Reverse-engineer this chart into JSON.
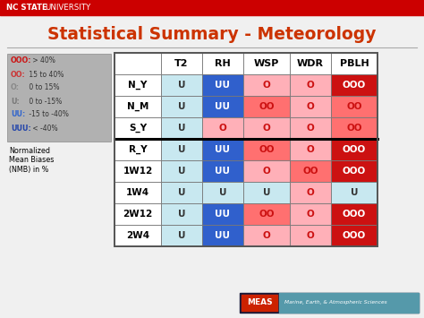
{
  "title": "Statistical Summary - Meteorology",
  "title_color": "#CC3300",
  "bg_color": "#F0F0F0",
  "top_bar_color": "#CC0000",
  "col_headers": [
    "",
    "T2",
    "RH",
    "WSP",
    "WDR",
    "PBLH"
  ],
  "row_labels": [
    "N_Y",
    "N_M",
    "S_Y",
    "R_Y",
    "1W12",
    "1W4",
    "2W12",
    "2W4"
  ],
  "cells": [
    [
      "U",
      "UU",
      "O",
      "O",
      "OOO"
    ],
    [
      "U",
      "UU",
      "OO",
      "O",
      "OO"
    ],
    [
      "U",
      "O",
      "O",
      "O",
      "OO"
    ],
    [
      "U",
      "UU",
      "OO",
      "O",
      "OOO"
    ],
    [
      "U",
      "UU",
      "O",
      "OO",
      "OOO"
    ],
    [
      "U",
      "U",
      "U",
      "O",
      "U"
    ],
    [
      "U",
      "UU",
      "OO",
      "O",
      "OOO"
    ],
    [
      "U",
      "UU",
      "O",
      "O",
      "OOO"
    ]
  ],
  "cell_colors": [
    [
      "#C8E8F0",
      "#3060CC",
      "#FFB0B8",
      "#FFB0B8",
      "#CC1111"
    ],
    [
      "#C8E8F0",
      "#3060CC",
      "#FF7070",
      "#FFB0B8",
      "#FF7070"
    ],
    [
      "#C8E8F0",
      "#FFB0B8",
      "#FFB0B8",
      "#FFB0B8",
      "#FF7070"
    ],
    [
      "#C8E8F0",
      "#3060CC",
      "#FF7070",
      "#FFB0B8",
      "#CC1111"
    ],
    [
      "#C8E8F0",
      "#3060CC",
      "#FFB0B8",
      "#FF7070",
      "#CC1111"
    ],
    [
      "#C8E8F0",
      "#C8E8F0",
      "#C8E8F0",
      "#FFB0B8",
      "#C8E8F0"
    ],
    [
      "#C8E8F0",
      "#3060CC",
      "#FF7070",
      "#FFB0B8",
      "#CC1111"
    ],
    [
      "#C8E8F0",
      "#3060CC",
      "#FFB0B8",
      "#FFB0B8",
      "#CC1111"
    ]
  ],
  "cell_text_colors": [
    [
      "#333333",
      "#FFFFFF",
      "#CC1111",
      "#CC1111",
      "#FFFFFF"
    ],
    [
      "#333333",
      "#FFFFFF",
      "#CC1111",
      "#CC1111",
      "#CC1111"
    ],
    [
      "#333333",
      "#CC1111",
      "#CC1111",
      "#CC1111",
      "#CC1111"
    ],
    [
      "#333333",
      "#FFFFFF",
      "#CC1111",
      "#CC1111",
      "#FFFFFF"
    ],
    [
      "#333333",
      "#FFFFFF",
      "#CC1111",
      "#CC1111",
      "#FFFFFF"
    ],
    [
      "#333333",
      "#333333",
      "#333333",
      "#CC1111",
      "#333333"
    ],
    [
      "#333333",
      "#FFFFFF",
      "#CC1111",
      "#CC1111",
      "#FFFFFF"
    ],
    [
      "#333333",
      "#FFFFFF",
      "#CC1111",
      "#CC1111",
      "#FFFFFF"
    ]
  ],
  "legend_lines": [
    {
      "text": "OOO: > 40%",
      "color": "#CC1111"
    },
    {
      "text": "OO: 15 to 40%",
      "color": "#CC3333"
    },
    {
      "text": "O: 0 to 15%",
      "color": "#999999"
    },
    {
      "text": "U: 0 to -15%",
      "color": "#777777"
    },
    {
      "text": "UU: -15 to -40%",
      "color": "#3366CC"
    },
    {
      "text": "UUU: < -40%",
      "color": "#2244AA"
    }
  ],
  "legend_bold_ends": [
    3,
    2,
    1,
    1,
    2,
    3
  ],
  "legend_note": "Normalized\nMean Biases\n(NMB) in %",
  "thick_row_after": 3,
  "meas_subtext": "Marine, Earth, & Atmospheric Sciences"
}
